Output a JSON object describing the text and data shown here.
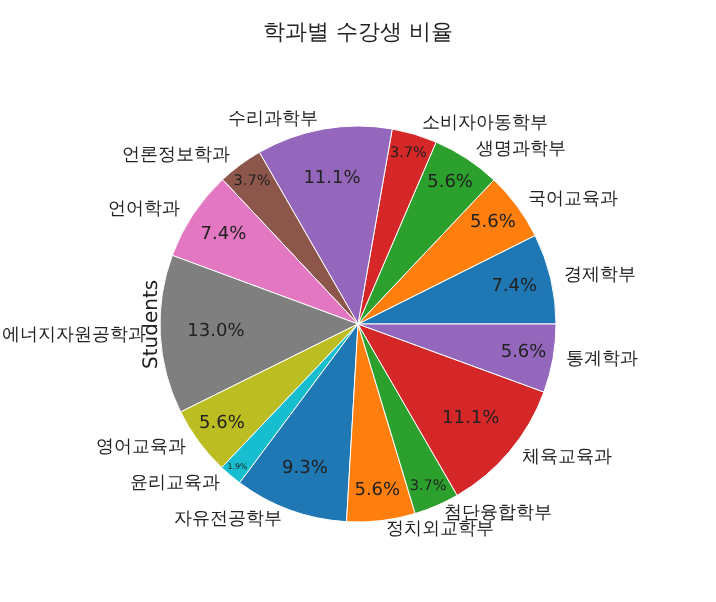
{
  "chart_data": {
    "type": "pie",
    "title": "학과별 수강생 비율",
    "ylabel": "Students",
    "categories": [
      "경제학부",
      "국어교육과",
      "생명과학부",
      "소비자아동학부",
      "수리과학부",
      "언론정보학과",
      "언어학과",
      "에너지자원공학과",
      "영어교육과",
      "윤리교육과",
      "자유전공학부",
      "정치외교학부",
      "첨단융합학부",
      "체육교육과",
      "통계학과"
    ],
    "values": [
      7.4,
      5.6,
      5.6,
      3.7,
      11.1,
      3.7,
      7.4,
      13.0,
      5.6,
      1.9,
      9.3,
      5.6,
      3.7,
      11.1,
      5.6
    ],
    "value_labels": [
      "7.4%",
      "5.6%",
      "5.6%",
      "3.7%",
      "11.1%",
      "3.7%",
      "7.4%",
      "13.0%",
      "5.6%",
      "1.9%",
      "9.3%",
      "5.6%",
      "3.7%",
      "11.1%",
      "5.6%"
    ],
    "colors": [
      "#1f77b4",
      "#ff7f0e",
      "#2ca02c",
      "#d62728",
      "#9467bd",
      "#8c564b",
      "#e377c2",
      "#7f7f7f",
      "#bcbd22",
      "#17becf",
      "#1f77b4",
      "#ff7f0e",
      "#2ca02c",
      "#d62728",
      "#9467bd"
    ],
    "legend": false
  }
}
